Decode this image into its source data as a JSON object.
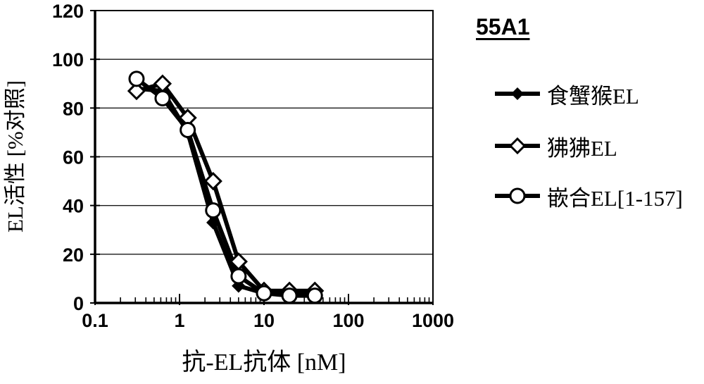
{
  "figure": {
    "title": "55A1"
  },
  "legend": {
    "items": [
      {
        "label": "食蟹猴EL",
        "marker": "filled-diamond"
      },
      {
        "label": "狒狒EL",
        "marker": "open-diamond"
      },
      {
        "label": "嵌合EL[1-157]",
        "marker": "open-circle"
      }
    ]
  },
  "chart_data": {
    "type": "line",
    "title": "55A1",
    "xlabel": "抗-EL抗体 [nM]",
    "ylabel": "EL活性 [%对照]",
    "x_scale": "log",
    "xlim": [
      0.1,
      1000
    ],
    "ylim": [
      0,
      120
    ],
    "y_ticks": [
      0,
      20,
      40,
      60,
      80,
      100,
      120
    ],
    "x_ticks": [
      0.1,
      1,
      10,
      100,
      1000
    ],
    "x_tick_labels": [
      "0.1",
      "1",
      "10",
      "100",
      "1000"
    ],
    "grid": "horizontal",
    "legend_position": "right",
    "line_color": "#000000",
    "background": "#ffffff",
    "x": [
      0.31,
      0.63,
      1.25,
      2.5,
      5,
      10,
      20,
      40
    ],
    "series": [
      {
        "name": "食蟹猴EL",
        "marker": "filled-diamond",
        "values": [
          88,
          87,
          70,
          33,
          7,
          4,
          4,
          4
        ]
      },
      {
        "name": "狒狒EL",
        "marker": "open-diamond",
        "values": [
          87,
          90,
          76,
          50,
          17,
          5,
          5,
          5
        ]
      },
      {
        "name": "嵌合EL[1-157]",
        "marker": "open-circle",
        "values": [
          92,
          84,
          71,
          38,
          11,
          4,
          3,
          3
        ]
      }
    ]
  }
}
